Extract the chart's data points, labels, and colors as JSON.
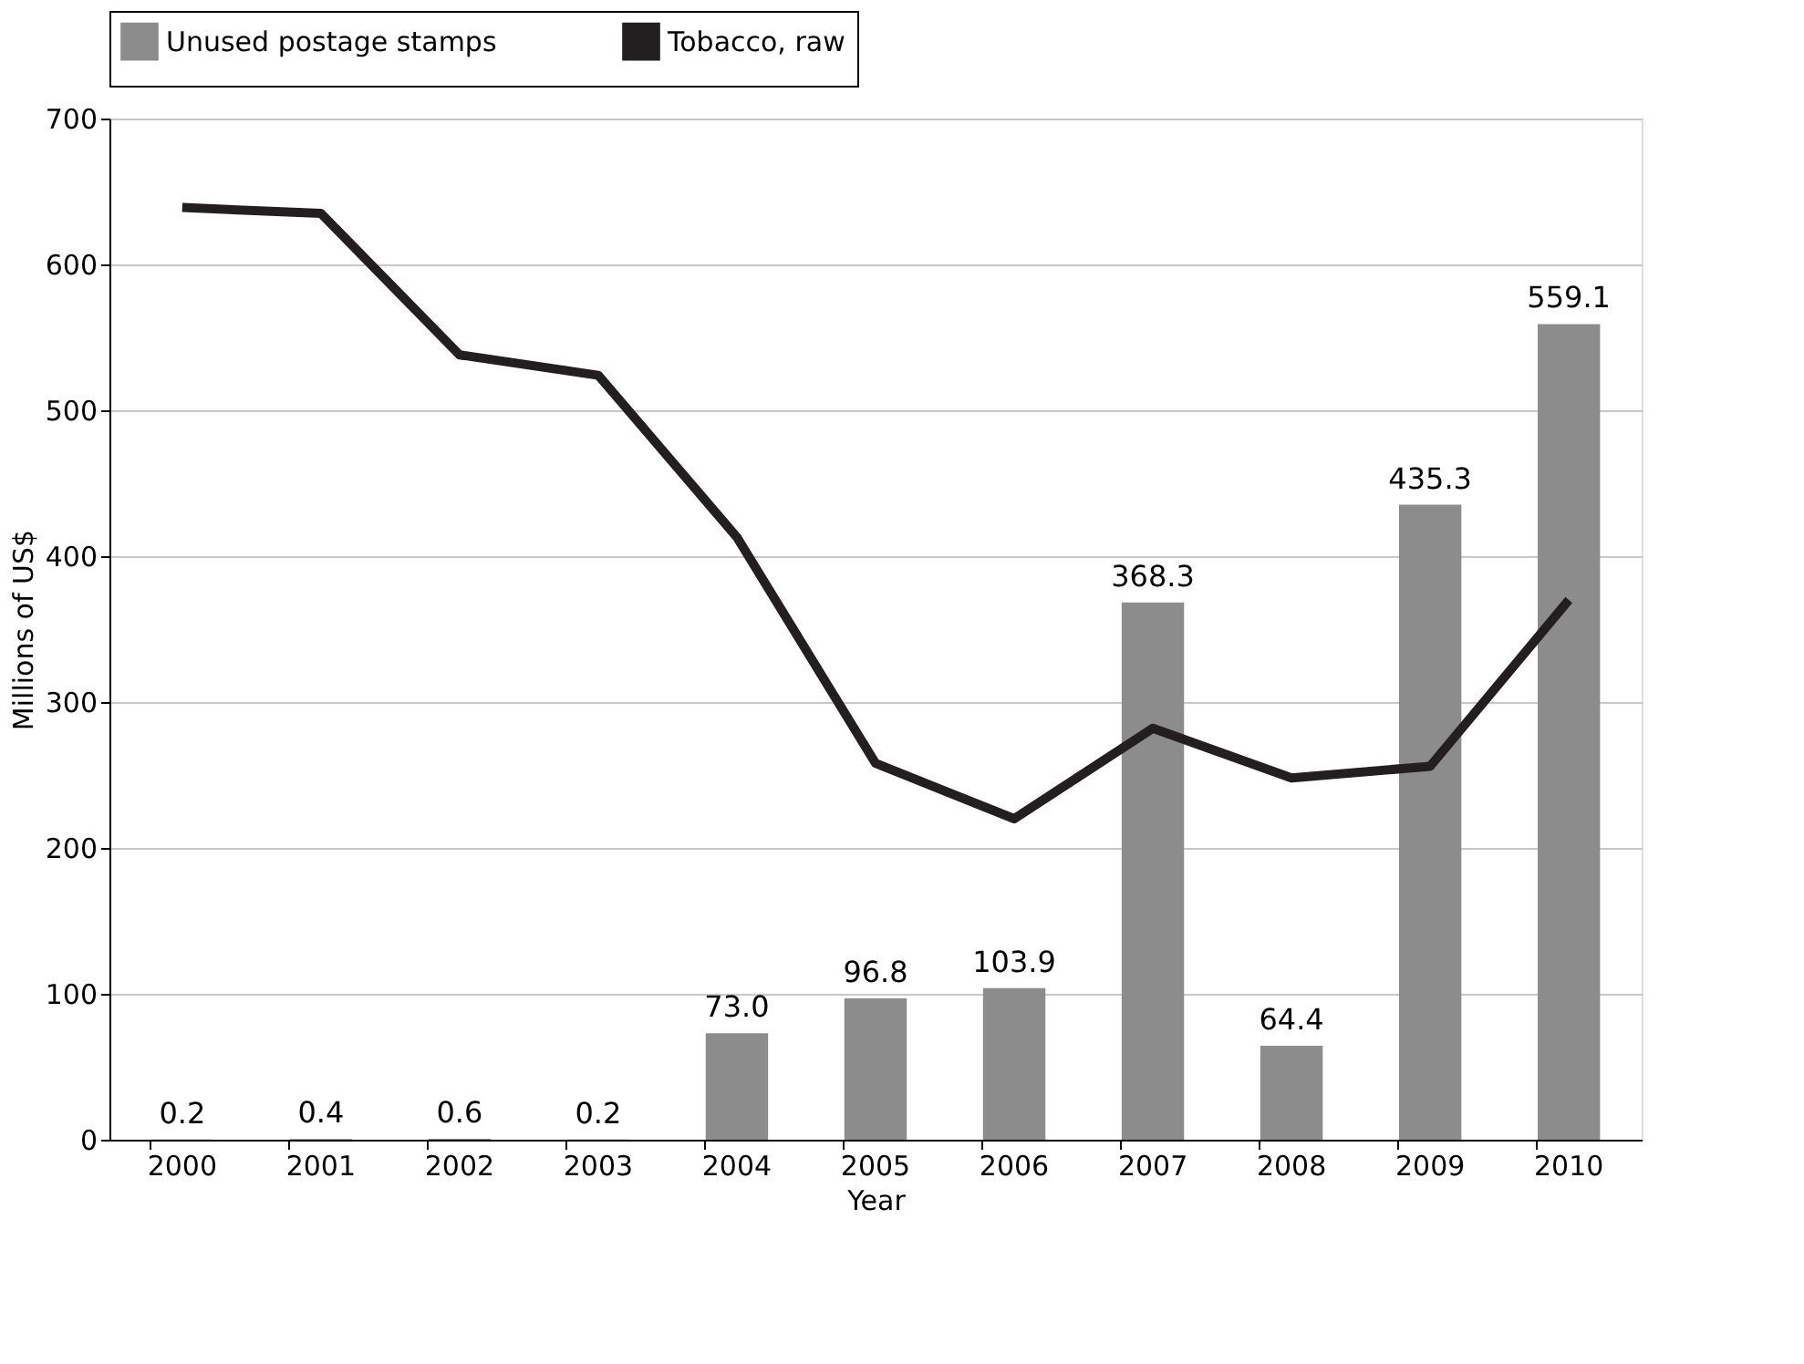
{
  "chart_data": {
    "type": "bar",
    "xlabel": "Year",
    "ylabel": "Millions of US$",
    "categories": [
      "2000",
      "2001",
      "2002",
      "2003",
      "2004",
      "2005",
      "2006",
      "2007",
      "2008",
      "2009",
      "2010"
    ],
    "series": [
      {
        "name": "Unused postage stamps",
        "color": "#8c8c8c",
        "values": [
          0.2,
          0.4,
          0.6,
          0.2,
          73.0,
          96.8,
          103.9,
          368.3,
          64.4,
          435.3,
          559.1
        ],
        "value_labels": [
          "0.2",
          "0.4",
          "0.6",
          "0.2",
          "73.0",
          "96.8",
          "103.9",
          "368.3",
          "64.4",
          "435.3",
          "559.1"
        ]
      },
      {
        "name": "Tobacco, raw",
        "type": "line",
        "color": "#231f20",
        "values": [
          639,
          635,
          538,
          524,
          413,
          258,
          220,
          282,
          248,
          256,
          370
        ]
      }
    ],
    "ylim": [
      0,
      700
    ],
    "yticks": [
      0,
      100,
      200,
      300,
      400,
      500,
      600,
      700
    ],
    "grid": "y",
    "legend": "top",
    "marker": "none",
    "line_style": "solid"
  }
}
